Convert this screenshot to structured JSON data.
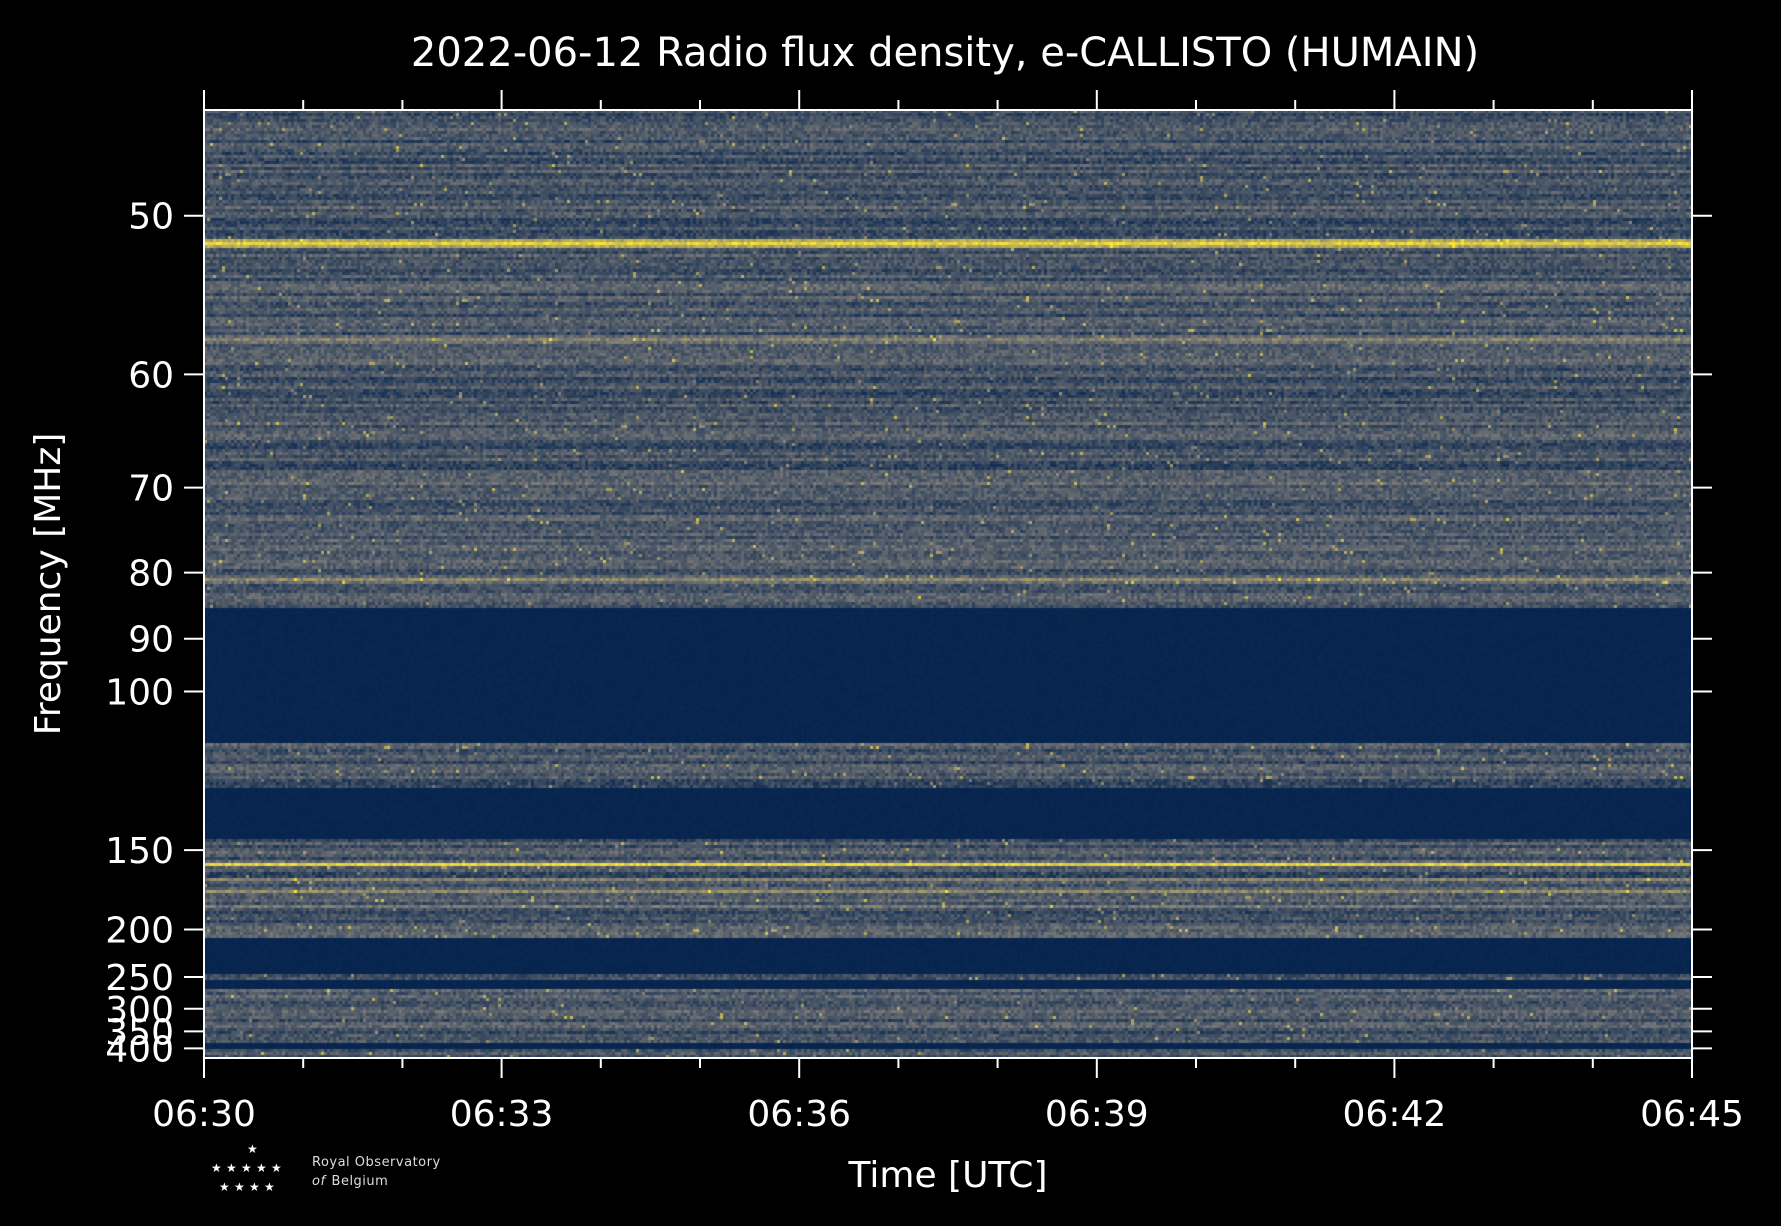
{
  "chart_data": {
    "type": "heatmap",
    "title": "2022-06-12 Radio flux density, e-CALLISTO (HUMAIN)",
    "xlabel": "Time [UTC]",
    "ylabel": "Frequency [MHz]",
    "x_tick_labels": [
      "06:30",
      "06:33",
      "06:36",
      "06:39",
      "06:42",
      "06:45"
    ],
    "x_tick_minutes": [
      0,
      3,
      6,
      9,
      12,
      15
    ],
    "x_minor_step_minutes": 1,
    "xlim_minutes": [
      0,
      15
    ],
    "y_tick_labels": [
      "50",
      "60",
      "70",
      "80",
      "90",
      "100",
      "150",
      "200",
      "250",
      "300",
      "350",
      "400"
    ],
    "y_ticks": [
      50,
      60,
      70,
      80,
      90,
      100,
      150,
      200,
      250,
      300,
      350,
      400
    ],
    "ylim": [
      45,
      435
    ],
    "y_scale": "reciprocal",
    "y_inverted": true,
    "colormap": "cividis",
    "colors": {
      "background": "#000000",
      "low": "#00204c",
      "mid": "#7c7b78",
      "high": "#fde737",
      "axis": "#ffffff"
    },
    "gap_bands_mhz": [
      [
        85,
        112
      ],
      [
        125,
        145
      ],
      [
        208,
        245
      ],
      [
        255,
        268
      ],
      [
        380,
        405
      ]
    ],
    "bright_lines_mhz": [
      {
        "freq": 51.5,
        "level": 0.9
      },
      {
        "freq": 57.5,
        "level": 0.55
      },
      {
        "freq": 69.5,
        "level": 0.45
      },
      {
        "freq": 81,
        "level": 0.6
      },
      {
        "freq": 157,
        "level": 0.95
      },
      {
        "freq": 166,
        "level": 0.75
      },
      {
        "freq": 172,
        "level": 0.7
      },
      {
        "freq": 183,
        "level": 0.6
      },
      {
        "freq": 205,
        "level": 0.4
      },
      {
        "freq": 293,
        "level": 0.35
      }
    ]
  },
  "logo": {
    "line1": "Royal Observatory",
    "line2_italic": "of",
    "line2": "Belgium"
  }
}
